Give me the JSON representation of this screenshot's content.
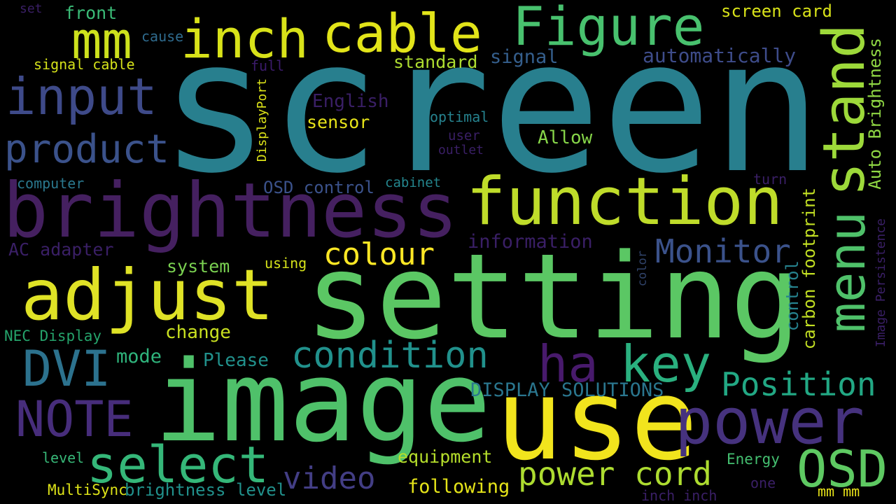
{
  "background_color": "#000000",
  "words": [
    {
      "text": "screen",
      "color": "#287f8e",
      "orientation": "horizontal"
    },
    {
      "text": "setting",
      "color": "#5bc764",
      "orientation": "horizontal"
    },
    {
      "text": "image",
      "color": "#4fc16a",
      "orientation": "horizontal"
    },
    {
      "text": "use",
      "color": "#f1e41d",
      "orientation": "horizontal"
    },
    {
      "text": "brightness",
      "color": "#452060",
      "orientation": "horizontal"
    },
    {
      "text": "function",
      "color": "#bfdc2a",
      "orientation": "horizontal"
    },
    {
      "text": "adjust",
      "color": "#dfe226",
      "orientation": "horizontal"
    },
    {
      "text": "stand",
      "color": "#9dd93a",
      "orientation": "vertical"
    },
    {
      "text": "menu",
      "color": "#4fc16a",
      "orientation": "vertical"
    },
    {
      "text": "power",
      "color": "#46327e",
      "orientation": "horizontal"
    },
    {
      "text": "cable",
      "color": "#e2e419",
      "orientation": "horizontal"
    },
    {
      "text": "Figure",
      "color": "#48c16e",
      "orientation": "horizontal"
    },
    {
      "text": "inch",
      "color": "#d8e219",
      "orientation": "horizontal"
    },
    {
      "text": "input",
      "color": "#3e4a89",
      "orientation": "horizontal"
    },
    {
      "text": "mm",
      "color": "#cde11d",
      "orientation": "horizontal"
    },
    {
      "text": "product",
      "color": "#3b528b",
      "orientation": "horizontal"
    },
    {
      "text": "key",
      "color": "#2ab07f",
      "orientation": "horizontal"
    },
    {
      "text": "ha",
      "color": "#481a6c",
      "orientation": "horizontal"
    },
    {
      "text": "DVI",
      "color": "#2c728e",
      "orientation": "horizontal"
    },
    {
      "text": "NOTE",
      "color": "#472d7b",
      "orientation": "horizontal"
    },
    {
      "text": "select",
      "color": "#35b779",
      "orientation": "horizontal"
    },
    {
      "text": "OSD",
      "color": "#5ec962",
      "orientation": "horizontal"
    },
    {
      "text": "condition",
      "color": "#21918c",
      "orientation": "horizontal"
    },
    {
      "text": "Position",
      "color": "#22a884",
      "orientation": "horizontal"
    },
    {
      "text": "Monitor",
      "color": "#3b528b",
      "orientation": "horizontal"
    },
    {
      "text": "video",
      "color": "#433e85",
      "orientation": "horizontal"
    },
    {
      "text": "power cord",
      "color": "#addc30",
      "orientation": "horizontal"
    },
    {
      "text": "colour",
      "color": "#fde725",
      "orientation": "horizontal"
    },
    {
      "text": "Auto Brightness",
      "color": "#8fd744",
      "orientation": "vertical"
    },
    {
      "text": "carbon footprint",
      "color": "#c2df23",
      "orientation": "vertical"
    },
    {
      "text": "control",
      "color": "#26828e",
      "orientation": "vertical"
    },
    {
      "text": "Image Persistence",
      "color": "#3a1f66",
      "orientation": "vertical"
    },
    {
      "text": "DisplayPort",
      "color": "#dde318",
      "orientation": "vertical"
    },
    {
      "text": "color",
      "color": "#31446b",
      "orientation": "vertical"
    },
    {
      "text": "screen card",
      "color": "#d8e219",
      "orientation": "horizontal"
    },
    {
      "text": "automatically",
      "color": "#3e4c8a",
      "orientation": "horizontal"
    },
    {
      "text": "signal",
      "color": "#355f8d",
      "orientation": "horizontal"
    },
    {
      "text": "standard",
      "color": "#addc30",
      "orientation": "horizontal"
    },
    {
      "text": "front",
      "color": "#3aba76",
      "orientation": "horizontal"
    },
    {
      "text": "cause",
      "color": "#2f6b8e",
      "orientation": "horizontal"
    },
    {
      "text": "set",
      "color": "#3a1f66",
      "orientation": "horizontal"
    },
    {
      "text": "signal cable",
      "color": "#d5e21a",
      "orientation": "horizontal"
    },
    {
      "text": "full",
      "color": "#3b1b6b",
      "orientation": "horizontal"
    },
    {
      "text": "English",
      "color": "#3a1f66",
      "orientation": "horizontal"
    },
    {
      "text": "sensor",
      "color": "#e7e419",
      "orientation": "horizontal"
    },
    {
      "text": "optimal",
      "color": "#26828e",
      "orientation": "horizontal"
    },
    {
      "text": "user",
      "color": "#3a1f66",
      "orientation": "horizontal"
    },
    {
      "text": "outlet",
      "color": "#3a1f66",
      "orientation": "horizontal"
    },
    {
      "text": "Allow",
      "color": "#86d549",
      "orientation": "horizontal"
    },
    {
      "text": "computer",
      "color": "#2a788e",
      "orientation": "horizontal"
    },
    {
      "text": "OSD control",
      "color": "#3b528b",
      "orientation": "horizontal"
    },
    {
      "text": "cabinet",
      "color": "#24868e",
      "orientation": "horizontal"
    },
    {
      "text": "turn",
      "color": "#3a1f66",
      "orientation": "horizontal"
    },
    {
      "text": "information",
      "color": "#3a1f66",
      "orientation": "horizontal"
    },
    {
      "text": "AC adapter",
      "color": "#3a1f66",
      "orientation": "horizontal"
    },
    {
      "text": "system",
      "color": "#7ad151",
      "orientation": "horizontal"
    },
    {
      "text": "using",
      "color": "#d5e21a",
      "orientation": "horizontal"
    },
    {
      "text": "change",
      "color": "#c8e020",
      "orientation": "horizontal"
    },
    {
      "text": "NEC Display",
      "color": "#25a36b",
      "orientation": "horizontal"
    },
    {
      "text": "mode",
      "color": "#2fb47c",
      "orientation": "horizontal"
    },
    {
      "text": "Please",
      "color": "#21918c",
      "orientation": "horizontal"
    },
    {
      "text": "DISPLAY SOLUTIONS",
      "color": "#2a768e",
      "orientation": "horizontal"
    },
    {
      "text": "level",
      "color": "#37b878",
      "orientation": "horizontal"
    },
    {
      "text": "equipment",
      "color": "#b5de2b",
      "orientation": "horizontal"
    },
    {
      "text": "Energy",
      "color": "#44bf70",
      "orientation": "horizontal"
    },
    {
      "text": "MultiSync",
      "color": "#dde318",
      "orientation": "horizontal"
    },
    {
      "text": "brightness level",
      "color": "#21918c",
      "orientation": "horizontal"
    },
    {
      "text": "following",
      "color": "#e5e419",
      "orientation": "horizontal"
    },
    {
      "text": "one",
      "color": "#3a1f66",
      "orientation": "horizontal"
    },
    {
      "text": "mm mm",
      "color": "#e8e419",
      "orientation": "horizontal"
    },
    {
      "text": "inch inch",
      "color": "#3a1f66",
      "orientation": "horizontal"
    }
  ]
}
